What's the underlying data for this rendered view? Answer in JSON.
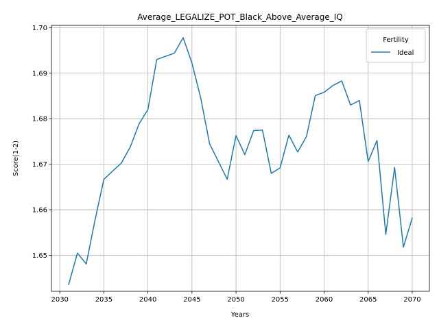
{
  "chart_data": {
    "type": "line",
    "title": "Average_LEGALIZE_POT_Black_Above_Average_IQ",
    "xlabel": "Years",
    "ylabel": "Score(1-2)",
    "xlim": [
      2029.05,
      2071.95
    ],
    "ylim": [
      1.6421,
      1.7005
    ],
    "x_ticks": [
      2030,
      2035,
      2040,
      2045,
      2050,
      2055,
      2060,
      2065,
      2070
    ],
    "x_tick_labels": [
      "2030",
      "2035",
      "2040",
      "2045",
      "2050",
      "2055",
      "2060",
      "2065",
      "2070"
    ],
    "y_ticks": [
      1.65,
      1.66,
      1.67,
      1.68,
      1.69,
      1.7
    ],
    "y_tick_labels": [
      "1.65",
      "1.66",
      "1.67",
      "1.68",
      "1.69",
      "1.70"
    ],
    "grid": true,
    "legend": {
      "title": "Fertility",
      "placement": "top-right"
    },
    "series": [
      {
        "name": "Ideal",
        "color": "#1f77b4",
        "x": [
          2031,
          2032,
          2033,
          2034,
          2035,
          2036,
          2037,
          2038,
          2039,
          2040,
          2041,
          2042,
          2043,
          2044,
          2045,
          2046,
          2047,
          2048,
          2049,
          2050,
          2051,
          2052,
          2053,
          2054,
          2055,
          2056,
          2057,
          2058,
          2059,
          2060,
          2061,
          2062,
          2063,
          2064,
          2065,
          2066,
          2067,
          2068,
          2069,
          2070
        ],
        "y": [
          1.6436,
          1.6505,
          1.6481,
          1.6578,
          1.6667,
          1.6685,
          1.6703,
          1.6738,
          1.6789,
          1.682,
          1.693,
          1.6937,
          1.6944,
          1.6978,
          1.6922,
          1.6845,
          1.6745,
          1.6706,
          1.6667,
          1.6763,
          1.6721,
          1.6774,
          1.6775,
          1.668,
          1.6692,
          1.6764,
          1.6727,
          1.6761,
          1.6851,
          1.6858,
          1.6873,
          1.6883,
          1.683,
          1.684,
          1.6706,
          1.6752,
          1.6546,
          1.6693,
          1.6518,
          1.6582
        ]
      }
    ]
  }
}
